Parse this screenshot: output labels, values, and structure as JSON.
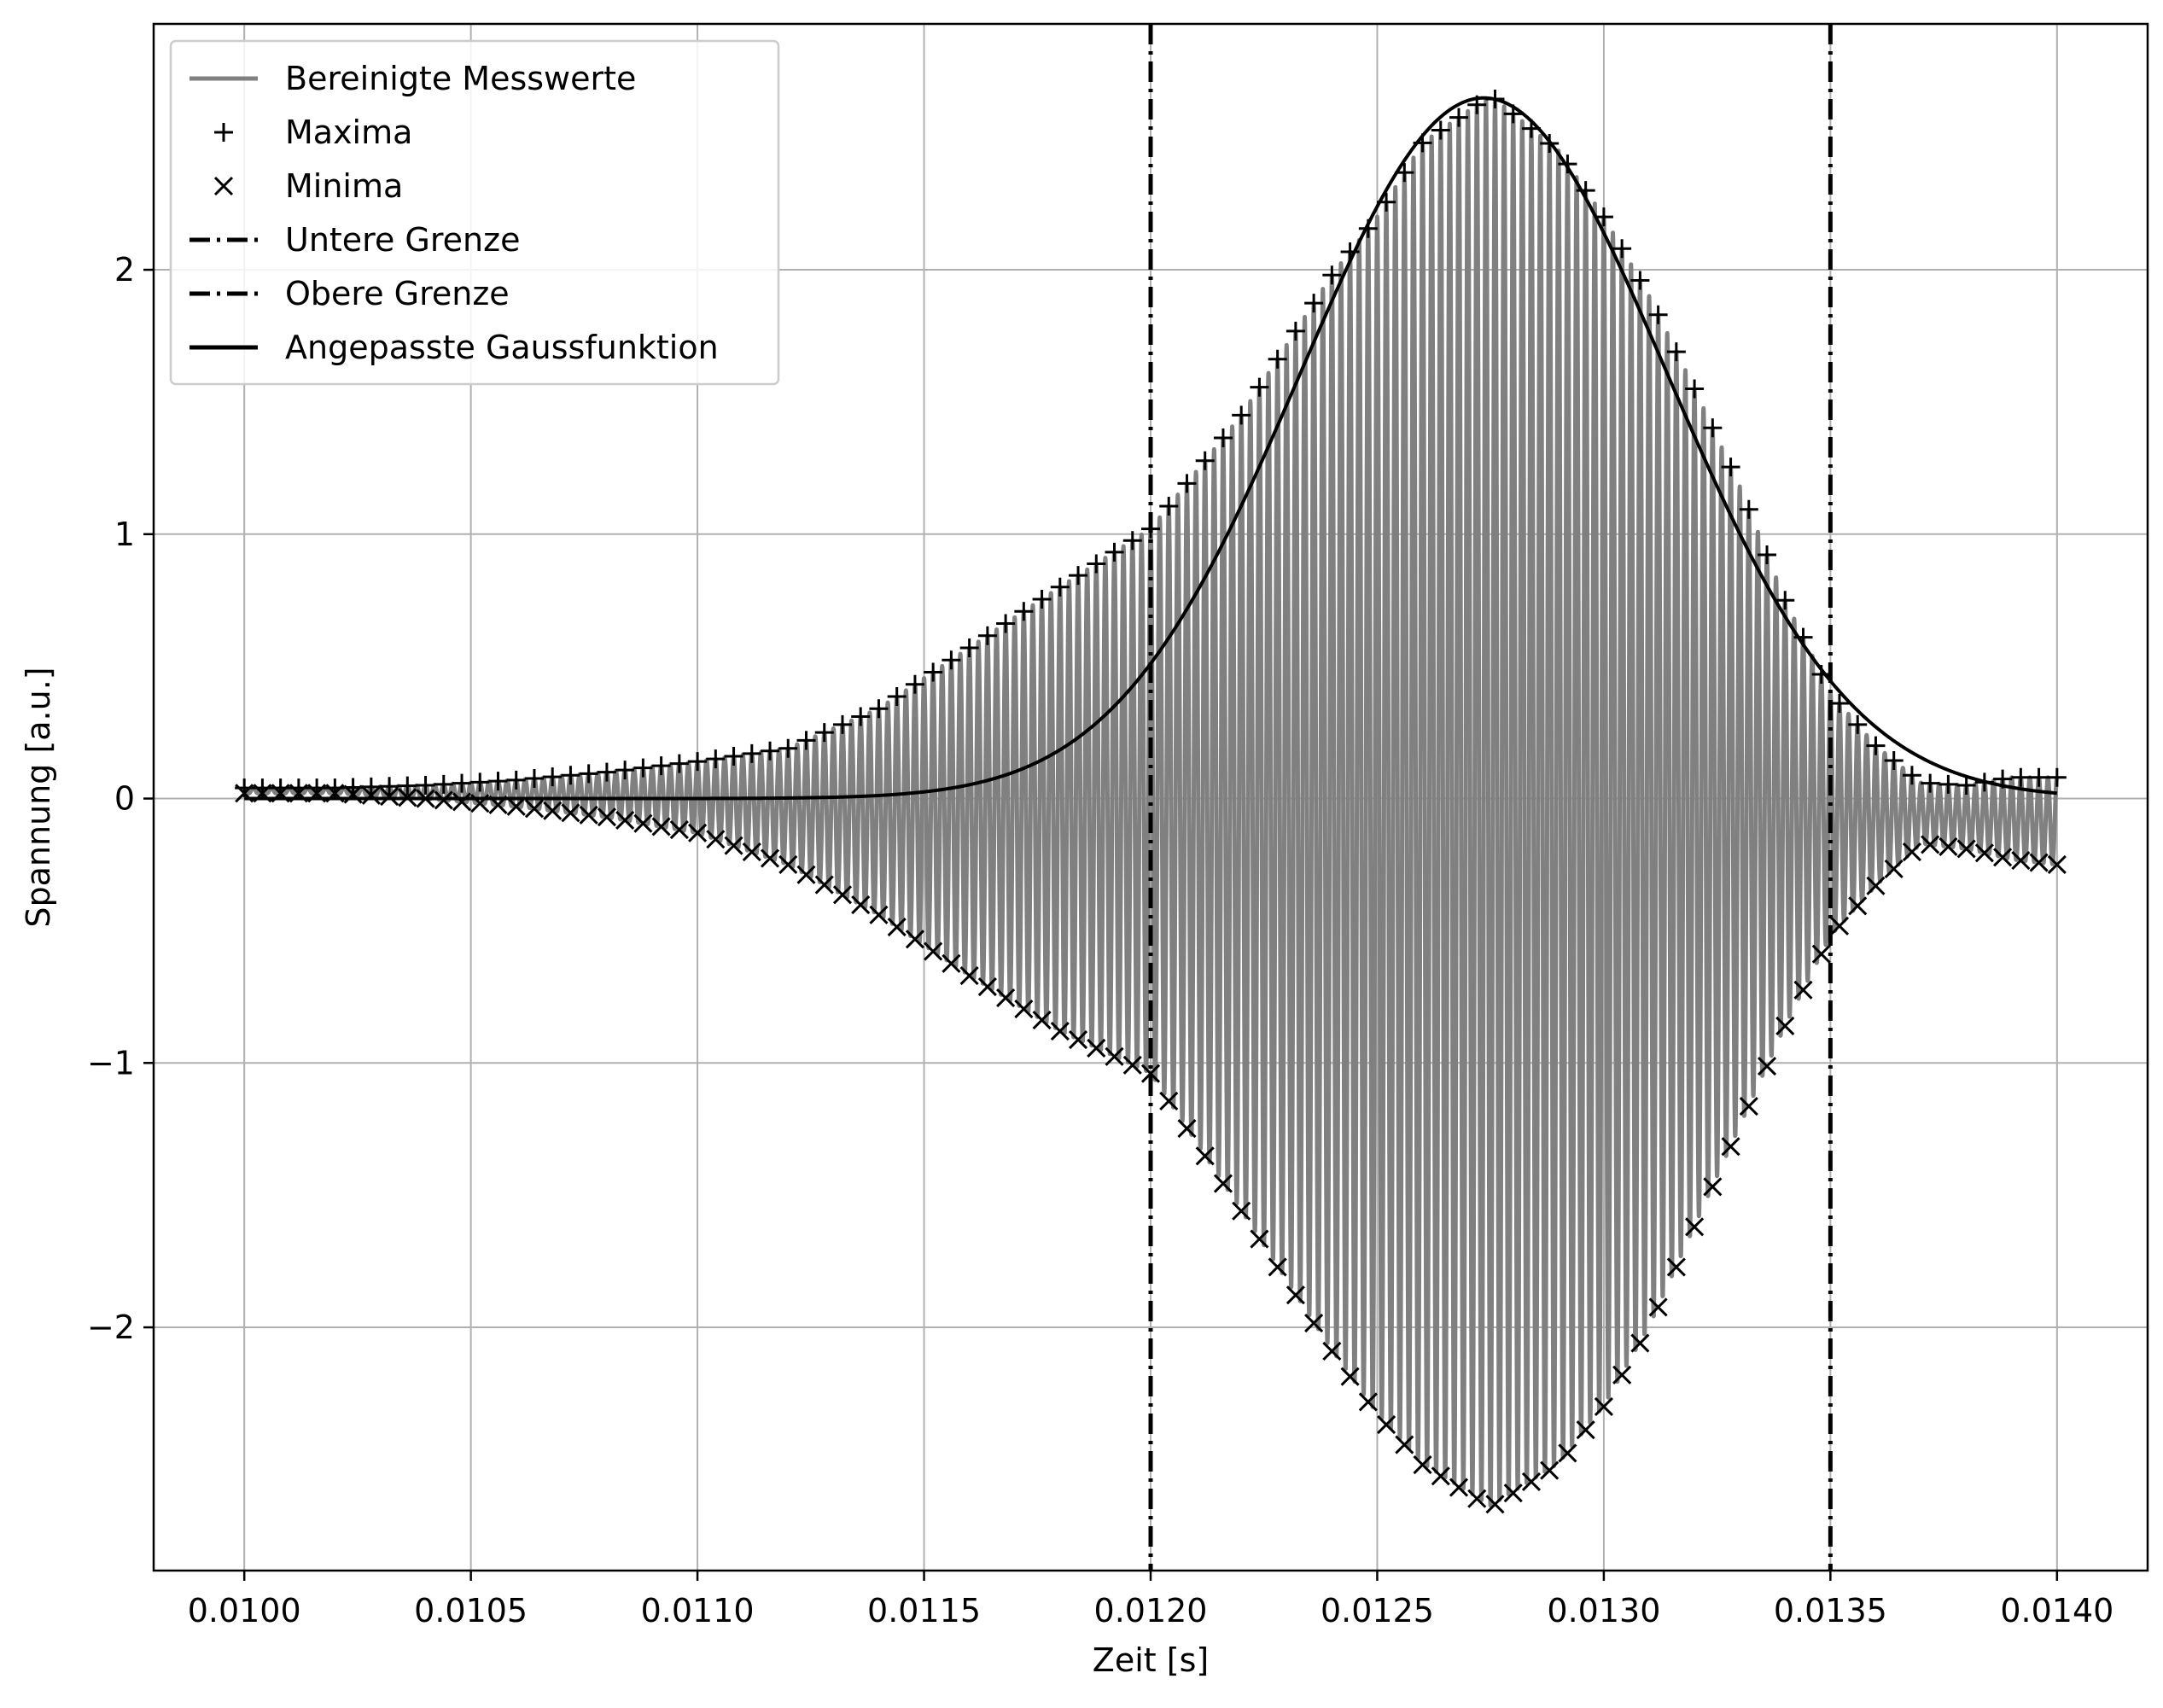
{
  "chart_data": {
    "type": "line",
    "xlabel": "Zeit [s]",
    "ylabel": "Spannung [a.u.]",
    "xlim": [
      0.0098,
      0.0142
    ],
    "ylim": [
      -2.92,
      2.93
    ],
    "x_ticks": [
      0.01,
      0.0105,
      0.011,
      0.0115,
      0.012,
      0.0125,
      0.013,
      0.0135,
      0.014
    ],
    "x_tick_labels": [
      "0.0100",
      "0.0105",
      "0.0110",
      "0.0115",
      "0.0120",
      "0.0125",
      "0.0130",
      "0.0135",
      "0.0140"
    ],
    "y_ticks": [
      -2,
      -1,
      0,
      1,
      2
    ],
    "y_tick_labels": [
      "−2",
      "−1",
      "0",
      "1",
      "2"
    ],
    "grid": true,
    "legend_position": "upper-left",
    "legend": [
      {
        "label": "Bereinigte Messwerte",
        "style": "line",
        "color": "#808080"
      },
      {
        "label": "Maxima",
        "style": "plus-marker",
        "color": "#000000"
      },
      {
        "label": "Minima",
        "style": "x-marker",
        "color": "#000000"
      },
      {
        "label": "Untere Grenze",
        "style": "dashdot",
        "color": "#000000"
      },
      {
        "label": "Obere Grenze",
        "style": "dashdot",
        "color": "#000000"
      },
      {
        "label": "Angepasste Gaussfunktion",
        "style": "line",
        "color": "#000000"
      }
    ],
    "signal": {
      "color": "#808080",
      "x_start": 0.01,
      "x_end": 0.014,
      "period": 2e-05,
      "upper_envelope": {
        "x": [
          0.01,
          0.0102,
          0.0104,
          0.0106,
          0.0108,
          0.011,
          0.0112,
          0.0114,
          0.0116,
          0.0118,
          0.012,
          0.0122,
          0.0124,
          0.0125,
          0.0126,
          0.01275,
          0.0129,
          0.013,
          0.0131,
          0.0132,
          0.0133,
          0.0134,
          0.0135,
          0.0136,
          0.0137,
          0.0138,
          0.0139,
          0.014
        ],
        "y": [
          0.04,
          0.04,
          0.05,
          0.07,
          0.1,
          0.14,
          0.19,
          0.34,
          0.57,
          0.8,
          1.02,
          1.45,
          1.98,
          2.2,
          2.48,
          2.66,
          2.45,
          2.2,
          1.9,
          1.55,
          1.18,
          0.75,
          0.4,
          0.2,
          0.06,
          0.05,
          0.08,
          0.08
        ]
      },
      "lower_envelope": {
        "x": [
          0.01,
          0.0102,
          0.0104,
          0.0106,
          0.0108,
          0.011,
          0.0112,
          0.0114,
          0.0116,
          0.0118,
          0.012,
          0.0122,
          0.0124,
          0.0125,
          0.0126,
          0.01275,
          0.0129,
          0.013,
          0.0131,
          0.0132,
          0.0133,
          0.0134,
          0.0135,
          0.0136,
          0.0137,
          0.0138,
          0.0139,
          0.014
        ],
        "y": [
          0.02,
          0.02,
          0.0,
          -0.03,
          -0.07,
          -0.13,
          -0.25,
          -0.44,
          -0.67,
          -0.88,
          -1.04,
          -1.56,
          -2.09,
          -2.33,
          -2.52,
          -2.68,
          -2.52,
          -2.3,
          -2.0,
          -1.62,
          -1.24,
          -0.86,
          -0.52,
          -0.33,
          -0.17,
          -0.19,
          -0.23,
          -0.25
        ]
      }
    },
    "maxima_marker_color": "#000000",
    "minima_marker_color": "#000000",
    "lower_bound_x": 0.012,
    "upper_bound_x": 0.0135,
    "gaussian_fit": {
      "color": "#000000",
      "amplitude": 2.65,
      "center": 0.012735,
      "sigma": 0.000405,
      "x_range": [
        0.01,
        0.014
      ]
    }
  }
}
